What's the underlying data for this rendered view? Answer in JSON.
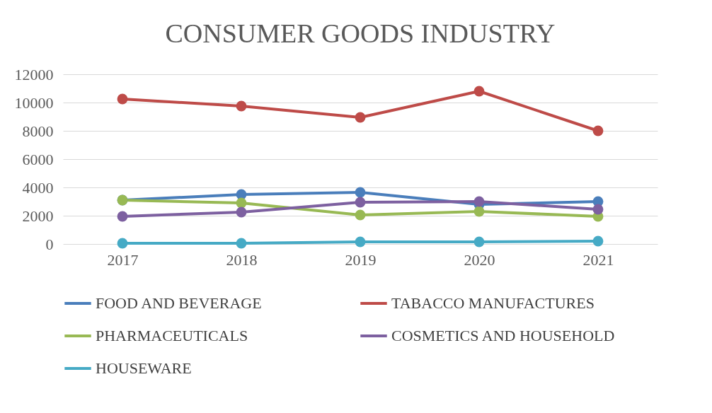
{
  "chart_data": {
    "type": "line",
    "title": "CONSUMER GOODS INDUSTRY",
    "categories": [
      "2017",
      "2018",
      "2019",
      "2020",
      "2021"
    ],
    "series": [
      {
        "name": "FOOD AND BEVERAGE",
        "color": "#4a7ebb",
        "values": [
          3100,
          3500,
          3650,
          2800,
          3000
        ]
      },
      {
        "name": "TABACCO MANUFACTURES",
        "color": "#be4b48",
        "values": [
          10250,
          9750,
          8950,
          10800,
          8000
        ]
      },
      {
        "name": "PHARMACEUTICALS",
        "color": "#98b954",
        "values": [
          3100,
          2900,
          2050,
          2300,
          1950
        ]
      },
      {
        "name": "COSMETICS AND HOUSEHOLD",
        "color": "#7d60a0",
        "values": [
          1950,
          2250,
          2950,
          3000,
          2450
        ]
      },
      {
        "name": "HOUSEWARE",
        "color": "#46aac5",
        "values": [
          50,
          50,
          150,
          150,
          200
        ]
      }
    ],
    "ylim": [
      0,
      12000
    ],
    "yticks": [
      0,
      2000,
      4000,
      6000,
      8000,
      10000,
      12000
    ],
    "grid": "y",
    "legend": "bottom",
    "marker": "circle",
    "line_style": "solid"
  }
}
